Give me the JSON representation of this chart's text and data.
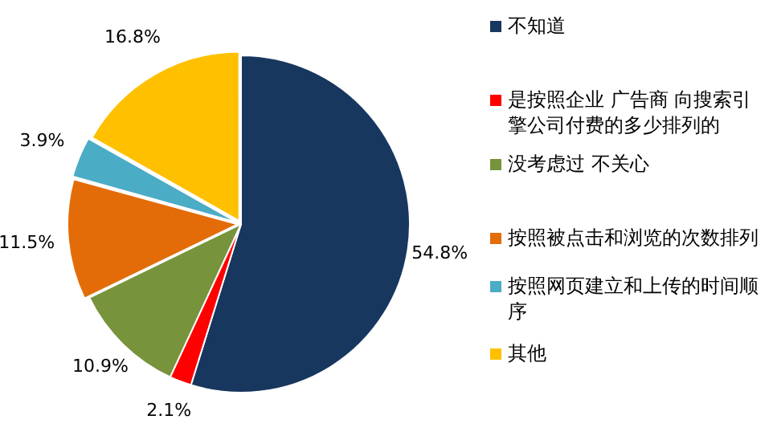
{
  "chart_data": {
    "type": "pie",
    "categories": [
      "不知道",
      "是按照企业 广告商 向搜索引擎公司付费的多少排列的",
      "没考虑过 不关心",
      "按照被点击和浏览的次数排列",
      "按照网页建立和上传的时间顺序",
      "其他"
    ],
    "values": [
      54.8,
      2.1,
      10.9,
      11.5,
      3.9,
      16.8
    ],
    "value_labels": [
      "54.8%",
      "2.1%",
      "10.9%",
      "11.5%",
      "3.9%",
      "16.8%"
    ],
    "colors": [
      "#17375e",
      "#ff0000",
      "#77933c",
      "#e36c09",
      "#4bacc6",
      "#ffc000"
    ],
    "legend": "right"
  }
}
